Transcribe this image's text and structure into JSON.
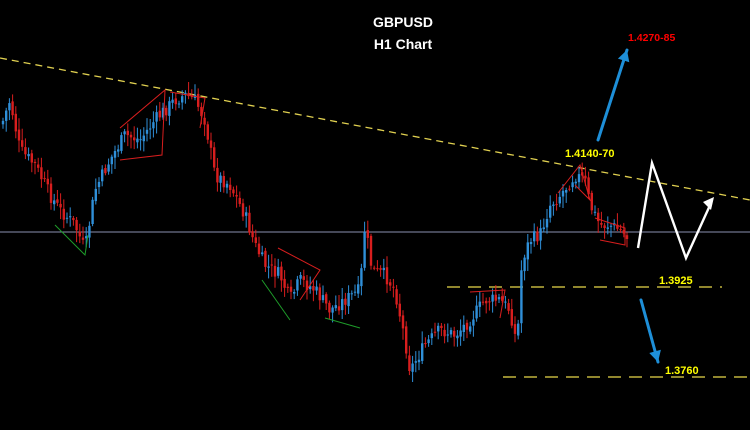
{
  "chart_data": {
    "type": "candlestick",
    "title": "GBPUSD",
    "subtitle": "H1 Chart",
    "grid": false,
    "colors": {
      "background": "#000000",
      "bull": "#2f8fd8",
      "bear": "#d81e1e",
      "trendline": "#e0d050",
      "level_line": "#e8d84a",
      "midline": "#8a8fb0",
      "wedge": "#d81e1e",
      "wedge_low": "#1e9c2a",
      "forecast_arrow": "#1e8fd8",
      "projection": "#ffffff",
      "label_yellow": "#ffff00",
      "label_red": "#ff0000"
    },
    "annotations": {
      "target_high": "1.4270-85",
      "resistance": "1.4140-70",
      "support_1": "1.3925",
      "support_2": "1.3760"
    }
  }
}
